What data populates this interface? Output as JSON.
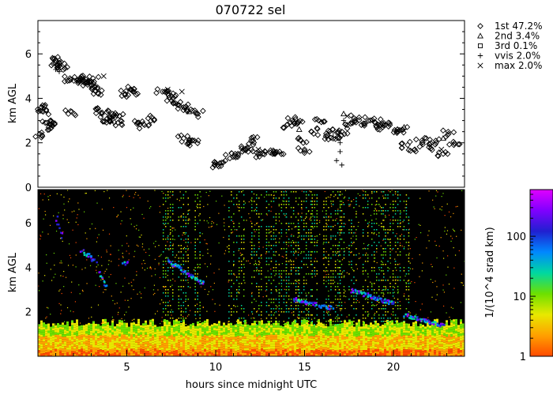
{
  "chart_data": [
    {
      "type": "scatter",
      "title": "070722 sel",
      "xlabel": "",
      "ylabel": "km AGL",
      "xlim": [
        0,
        24
      ],
      "ylim": [
        0,
        7.5
      ],
      "yticks": [
        0,
        2,
        4,
        6
      ],
      "legend_position": "right",
      "series": [
        {
          "name": "1st 47.2%",
          "marker": "diamond",
          "points": [
            [
              0.1,
              2.4
            ],
            [
              0.2,
              3.6
            ],
            [
              0.3,
              3.4
            ],
            [
              0.5,
              2.9
            ],
            [
              0.6,
              2.7
            ],
            [
              0.8,
              2.8
            ],
            [
              1.0,
              5.7
            ],
            [
              1.1,
              5.5
            ],
            [
              1.2,
              5.6
            ],
            [
              1.3,
              5.4
            ],
            [
              1.8,
              4.9
            ],
            [
              1.9,
              3.4
            ],
            [
              2.2,
              4.8
            ],
            [
              2.4,
              4.9
            ],
            [
              2.6,
              4.8
            ],
            [
              2.8,
              4.7
            ],
            [
              3.0,
              4.6
            ],
            [
              3.1,
              4.9
            ],
            [
              3.2,
              4.5
            ],
            [
              3.4,
              4.2
            ],
            [
              3.3,
              3.5
            ],
            [
              3.6,
              3.3
            ],
            [
              3.9,
              3.1
            ],
            [
              4.0,
              3.0
            ],
            [
              4.2,
              3.3
            ],
            [
              4.5,
              2.9
            ],
            [
              4.6,
              3.2
            ],
            [
              4.9,
              4.2
            ],
            [
              5.2,
              4.4
            ],
            [
              5.4,
              4.3
            ],
            [
              5.6,
              2.9
            ],
            [
              6.0,
              2.8
            ],
            [
              6.2,
              3.1
            ],
            [
              7.0,
              4.3
            ],
            [
              7.3,
              4.2
            ],
            [
              7.6,
              4.0
            ],
            [
              7.9,
              3.7
            ],
            [
              8.2,
              3.6
            ],
            [
              8.6,
              3.5
            ],
            [
              9.0,
              3.3
            ],
            [
              8.2,
              2.2
            ],
            [
              8.5,
              2.0
            ],
            [
              8.8,
              2.1
            ],
            [
              10.0,
              1.1
            ],
            [
              10.1,
              1.0
            ],
            [
              10.8,
              1.3
            ],
            [
              11.1,
              1.5
            ],
            [
              11.5,
              1.6
            ],
            [
              11.8,
              1.8
            ],
            [
              12.1,
              2.1
            ],
            [
              12.4,
              1.5
            ],
            [
              12.8,
              1.6
            ],
            [
              13.2,
              1.5
            ],
            [
              13.6,
              1.6
            ],
            [
              14.0,
              2.8
            ],
            [
              14.3,
              3.0
            ],
            [
              14.6,
              2.9
            ],
            [
              14.8,
              2.1
            ],
            [
              15.0,
              1.7
            ],
            [
              15.4,
              2.5
            ],
            [
              15.8,
              3.0
            ],
            [
              16.2,
              2.3
            ],
            [
              16.6,
              2.6
            ],
            [
              16.9,
              2.2
            ],
            [
              17.1,
              2.5
            ],
            [
              17.4,
              2.8
            ],
            [
              17.8,
              3.1
            ],
            [
              18.2,
              2.8
            ],
            [
              18.6,
              3.0
            ],
            [
              19.0,
              2.9
            ],
            [
              19.4,
              2.7
            ],
            [
              19.8,
              2.8
            ],
            [
              20.2,
              2.5
            ],
            [
              20.5,
              2.6
            ],
            [
              20.8,
              1.9
            ],
            [
              21.2,
              1.7
            ],
            [
              21.6,
              2.1
            ],
            [
              22.0,
              1.8
            ],
            [
              22.4,
              2.0
            ],
            [
              22.8,
              1.5
            ],
            [
              23.1,
              2.4
            ],
            [
              23.4,
              1.9
            ]
          ]
        },
        {
          "name": "2nd 3.4%",
          "marker": "triangle",
          "points": [
            [
              4.1,
              3.0
            ],
            [
              8.5,
              3.4
            ],
            [
              14.7,
              2.6
            ],
            [
              17.2,
              3.3
            ],
            [
              20.6,
              2.7
            ],
            [
              22.8,
              2.2
            ]
          ]
        },
        {
          "name": "3rd 0.1%",
          "marker": "square",
          "points": [
            [
              16.5,
              2.4
            ]
          ]
        },
        {
          "name": "vvis 2.0%",
          "marker": "plus",
          "points": [
            [
              1.0,
              5.3
            ],
            [
              1.2,
              5.2
            ],
            [
              16.8,
              1.2
            ],
            [
              17.0,
              1.6
            ],
            [
              17.1,
              1.0
            ],
            [
              17.0,
              2.0
            ],
            [
              17.2,
              3.0
            ]
          ]
        },
        {
          "name": "max 2.0%",
          "marker": "cross",
          "points": [
            [
              0.3,
              3.6
            ],
            [
              3.7,
              5.0
            ],
            [
              7.3,
              4.4
            ],
            [
              8.1,
              4.3
            ],
            [
              12.4,
              1.7
            ],
            [
              17.4,
              3.2
            ],
            [
              22.7,
              1.7
            ]
          ]
        }
      ]
    },
    {
      "type": "heatmap",
      "title": "",
      "xlabel": "hours since midnight UTC",
      "ylabel": "km AGL",
      "xlim": [
        0,
        24
      ],
      "ylim": [
        0,
        7.5
      ],
      "xticks": [
        5,
        10,
        15,
        20
      ],
      "yticks": [
        2,
        4,
        6
      ],
      "colorbar": {
        "label": "1/(10^4 srad km)",
        "scale": "log",
        "range": [
          1,
          600
        ],
        "ticks": [
          1,
          10,
          100
        ],
        "colors": [
          "#ff4a00",
          "#ffa000",
          "#e8e800",
          "#6de000",
          "#00d8a0",
          "#0088ff",
          "#2020d0",
          "#8000ff",
          "#e000ff"
        ]
      },
      "background_color": "#000000",
      "boundary_layer_top_km": 1.4,
      "rain_columns_hours": [
        7.3,
        8.2,
        9.0,
        10.9,
        11.4,
        12.3,
        13.1,
        13.8,
        14.3,
        15.0,
        15.6,
        16.3,
        16.8,
        17.1,
        17.7,
        18.4,
        19.1,
        19.6,
        20.2,
        20.7
      ],
      "cloud_bands": [
        {
          "x": [
            1.0,
            1.3
          ],
          "y": [
            6.3,
            5.4
          ]
        },
        {
          "x": [
            2.4,
            3.2
          ],
          "y": [
            4.8,
            4.3
          ]
        },
        {
          "x": [
            3.4,
            3.8
          ],
          "y": [
            3.8,
            3.2
          ]
        },
        {
          "x": [
            4.7,
            5.0
          ],
          "y": [
            4.3,
            4.2
          ]
        },
        {
          "x": [
            7.3,
            9.3
          ],
          "y": [
            4.3,
            3.3
          ]
        },
        {
          "x": [
            14.3,
            16.5
          ],
          "y": [
            2.6,
            2.2
          ]
        },
        {
          "x": [
            17.6,
            20.0
          ],
          "y": [
            3.0,
            2.4
          ]
        },
        {
          "x": [
            20.6,
            22.8
          ],
          "y": [
            1.9,
            1.4
          ]
        }
      ]
    }
  ]
}
